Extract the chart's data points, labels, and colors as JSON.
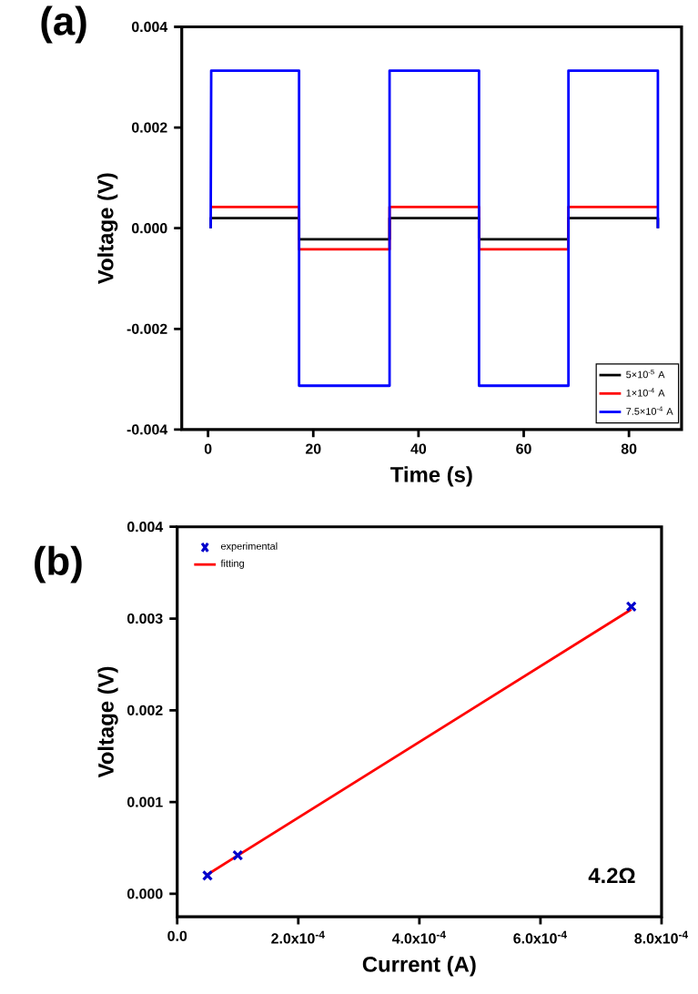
{
  "chart_data": [
    {
      "type": "line",
      "title": "(a)",
      "xlabel": "Time (s)",
      "ylabel": "Voltage (V)",
      "xlim": [
        -5,
        90
      ],
      "ylim": [
        -0.004,
        0.004
      ],
      "xticks": [
        0,
        20,
        40,
        60,
        80
      ],
      "yticks": [
        {
          "value": -0.004,
          "label": "-0.004"
        },
        {
          "value": -0.002,
          "label": "-0.002"
        },
        {
          "value": 0,
          "label": "0.000"
        },
        {
          "value": 0.002,
          "label": "0.002"
        },
        {
          "value": 0.004,
          "label": "0.004"
        }
      ],
      "legend": "bottom right",
      "line_style": "solid",
      "marker": "none",
      "series": [
        {
          "name": "5×10$^{-5}$ A",
          "color": "#000000",
          "x": [
            0.5,
            0.5,
            17.3,
            17.3,
            34.5,
            34.5,
            51.5,
            51.5,
            68.5,
            68.5,
            85.5,
            85.5
          ],
          "values": [
            0,
            0.0002,
            0.0002,
            -0.00022,
            -0.00022,
            0.0002,
            0.0002,
            -0.00022,
            -0.00022,
            0.0002,
            0.0002,
            0
          ]
        },
        {
          "name": "1×10$^{-4}$ A",
          "color": "#ff0000",
          "x": [
            0.6,
            17.3,
            17.3,
            34.5,
            34.5,
            51.5,
            51.5,
            68.5,
            68.5,
            85.5
          ],
          "values": [
            0.00042,
            0.00042,
            -0.00042,
            -0.00042,
            0.00042,
            0.00042,
            -0.00042,
            -0.00042,
            0.00042,
            0.00042
          ]
        },
        {
          "name": "7.5×10$^{-4}$ A",
          "color": "#0000ff",
          "x": [
            0.5,
            0.6,
            17.3,
            17.3,
            34.5,
            34.5,
            51.5,
            51.5,
            68.5,
            68.5,
            85.5,
            85.5
          ],
          "values": [
            0,
            0.00313,
            0.00313,
            -0.00313,
            -0.00313,
            0.00313,
            0.00313,
            -0.00313,
            -0.00313,
            0.00313,
            0.00313,
            0
          ]
        }
      ]
    },
    {
      "type": "scatter",
      "title": "(b)",
      "xlabel": "Current (A)",
      "ylabel": "Voltage (V)",
      "xlim": [
        0,
        0.0008
      ],
      "ylim": [
        -0.00025,
        0.004
      ],
      "xticks": [
        {
          "value": 0,
          "label": "0.0"
        },
        {
          "value": 0.0002,
          "label": "2.0x10$^{-4}$"
        },
        {
          "value": 0.0004,
          "label": "4.0x10$^{-4}$"
        },
        {
          "value": 0.0006,
          "label": "6.0x10$^{-4}$"
        },
        {
          "value": 0.0008,
          "label": "8.0x10$^{-4}$"
        }
      ],
      "yticks": [
        {
          "value": 0,
          "label": "0.000"
        },
        {
          "value": 0.001,
          "label": "0.001"
        },
        {
          "value": 0.002,
          "label": "0.002"
        },
        {
          "value": 0.003,
          "label": "0.003"
        },
        {
          "value": 0.004,
          "label": "0.004"
        }
      ],
      "legend": "top left",
      "annotations": [
        "4.2Ω"
      ],
      "series": [
        {
          "name": "experimental",
          "type": "scatter",
          "marker": "cross",
          "color": "#0000cc",
          "x": [
            5e-05,
            0.0001,
            0.00075
          ],
          "values": [
            0.0002,
            0.00042,
            0.00313
          ]
        },
        {
          "name": "fitting",
          "type": "line",
          "marker": "none",
          "line_style": "solid",
          "color": "#ff0000",
          "x": [
            5e-05,
            0.00075
          ],
          "values": [
            0.00021,
            0.0031
          ]
        }
      ]
    }
  ]
}
